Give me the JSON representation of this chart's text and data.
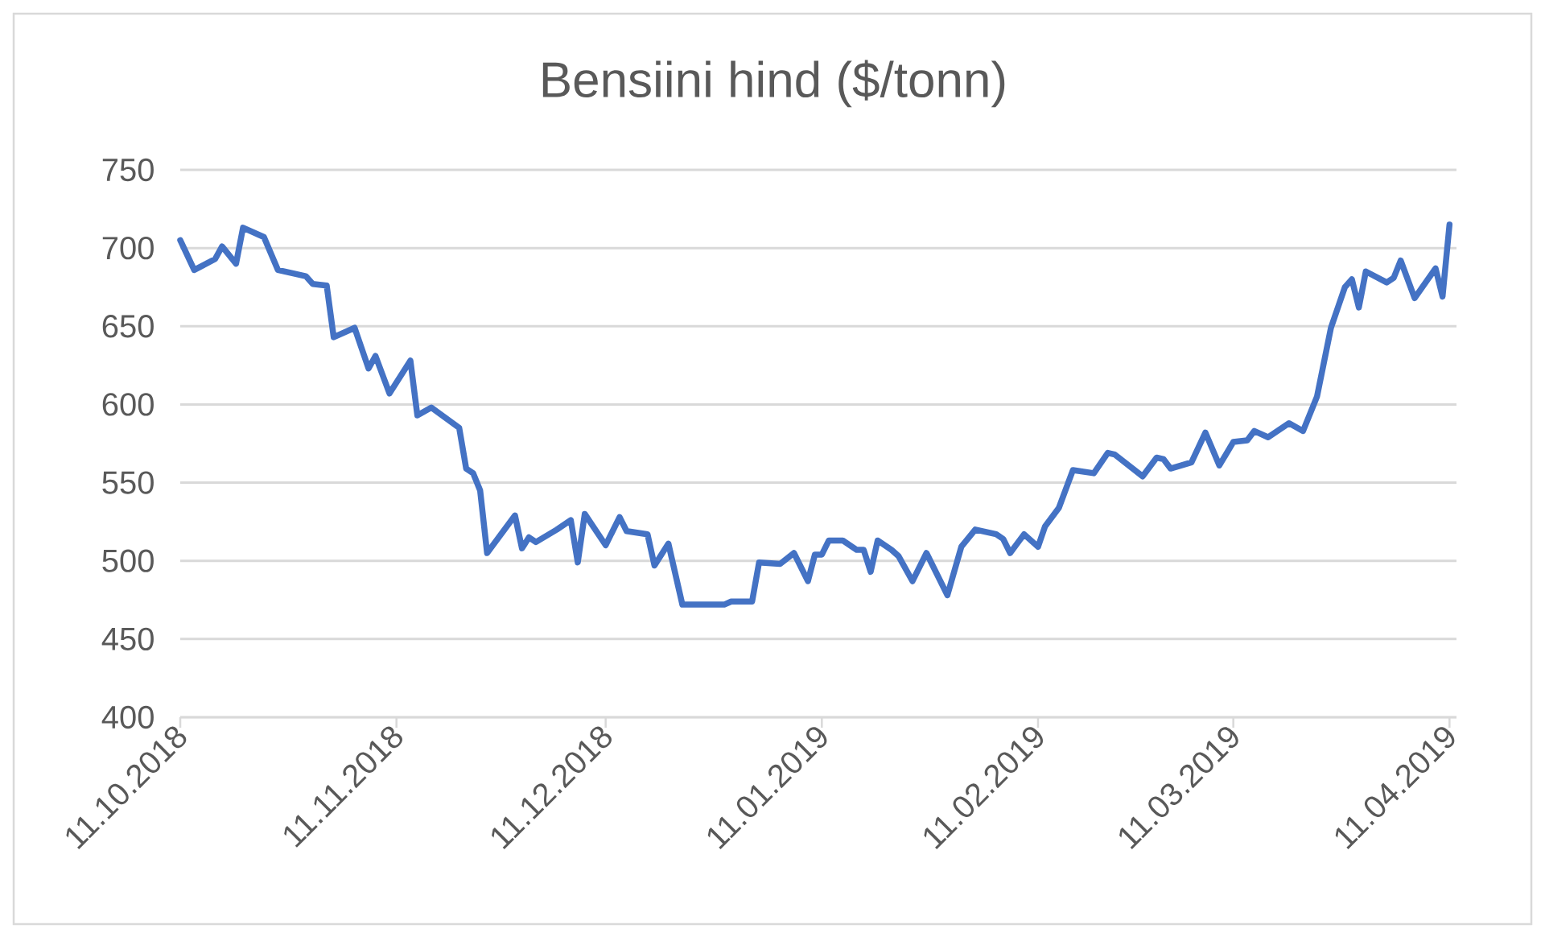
{
  "chart_data": {
    "type": "line",
    "title": "Bensiini hind ($/tonn)",
    "x": [
      "2018-10-11",
      "2018-10-13",
      "2018-10-16",
      "2018-10-17",
      "2018-10-19",
      "2018-10-20",
      "2018-10-23",
      "2018-10-25",
      "2018-10-29",
      "2018-10-30",
      "2018-11-01",
      "2018-11-02",
      "2018-11-05",
      "2018-11-07",
      "2018-11-08",
      "2018-11-10",
      "2018-11-13",
      "2018-11-14",
      "2018-11-16",
      "2018-11-20",
      "2018-11-21",
      "2018-11-22",
      "2018-11-23",
      "2018-11-24",
      "2018-11-28",
      "2018-11-29",
      "2018-11-30",
      "2018-12-01",
      "2018-12-04",
      "2018-12-06",
      "2018-12-07",
      "2018-12-08",
      "2018-12-11",
      "2018-12-13",
      "2018-12-14",
      "2018-12-17",
      "2018-12-18",
      "2018-12-20",
      "2018-12-22",
      "2018-12-28",
      "2018-12-29",
      "2019-01-01",
      "2019-01-02",
      "2019-01-05",
      "2019-01-07",
      "2019-01-09",
      "2019-01-10",
      "2019-01-11",
      "2019-01-12",
      "2019-01-14",
      "2019-01-16",
      "2019-01-17",
      "2019-01-18",
      "2019-01-19",
      "2019-01-21",
      "2019-01-22",
      "2019-01-24",
      "2019-01-26",
      "2019-01-29",
      "2019-01-31",
      "2019-02-02",
      "2019-02-05",
      "2019-02-06",
      "2019-02-07",
      "2019-02-09",
      "2019-02-11",
      "2019-02-12",
      "2019-02-14",
      "2019-02-16",
      "2019-02-19",
      "2019-02-21",
      "2019-02-22",
      "2019-02-26",
      "2019-02-28",
      "2019-03-01",
      "2019-03-02",
      "2019-03-05",
      "2019-03-07",
      "2019-03-09",
      "2019-03-11",
      "2019-03-13",
      "2019-03-14",
      "2019-03-16",
      "2019-03-19",
      "2019-03-21",
      "2019-03-23",
      "2019-03-25",
      "2019-03-27",
      "2019-03-28",
      "2019-03-29",
      "2019-03-30",
      "2019-04-02",
      "2019-04-03",
      "2019-04-04",
      "2019-04-06",
      "2019-04-09",
      "2019-04-10",
      "2019-04-11"
    ],
    "values": [
      705,
      686,
      693,
      701,
      690,
      713,
      707,
      686,
      682,
      677,
      676,
      643,
      649,
      623,
      631,
      607,
      628,
      593,
      598,
      585,
      559,
      556,
      545,
      505,
      529,
      508,
      515,
      512,
      520,
      526,
      499,
      530,
      510,
      528,
      519,
      517,
      497,
      511,
      472,
      472,
      474,
      474,
      499,
      498,
      505,
      487,
      504,
      504,
      513,
      513,
      507,
      507,
      493,
      513,
      507,
      503,
      487,
      505,
      478,
      509,
      520,
      517,
      514,
      505,
      517,
      509,
      522,
      534,
      558,
      556,
      569,
      568,
      554,
      566,
      565,
      559,
      563,
      582,
      561,
      576,
      577,
      583,
      579,
      588,
      583,
      605,
      649,
      675,
      680,
      662,
      685,
      678,
      681,
      692,
      668,
      687,
      669,
      715
    ],
    "color": "#4472c4",
    "line_style": "solid",
    "grid": "y",
    "xlim": [
      "2018-10-11",
      "2019-04-12"
    ],
    "xticks": [
      {
        "value": "2018-10-11",
        "label": "11.10.2018"
      },
      {
        "value": "2018-11-11",
        "label": "11.11.2018"
      },
      {
        "value": "2018-12-11",
        "label": "11.12.2018"
      },
      {
        "value": "2019-01-11",
        "label": "11.01.2019"
      },
      {
        "value": "2019-02-11",
        "label": "11.02.2019"
      },
      {
        "value": "2019-03-11",
        "label": "11.03.2019"
      },
      {
        "value": "2019-04-11",
        "label": "11.04.2019"
      }
    ],
    "ylim": [
      400,
      750
    ],
    "yticks": [
      400,
      450,
      500,
      550,
      600,
      650,
      700,
      750
    ]
  }
}
